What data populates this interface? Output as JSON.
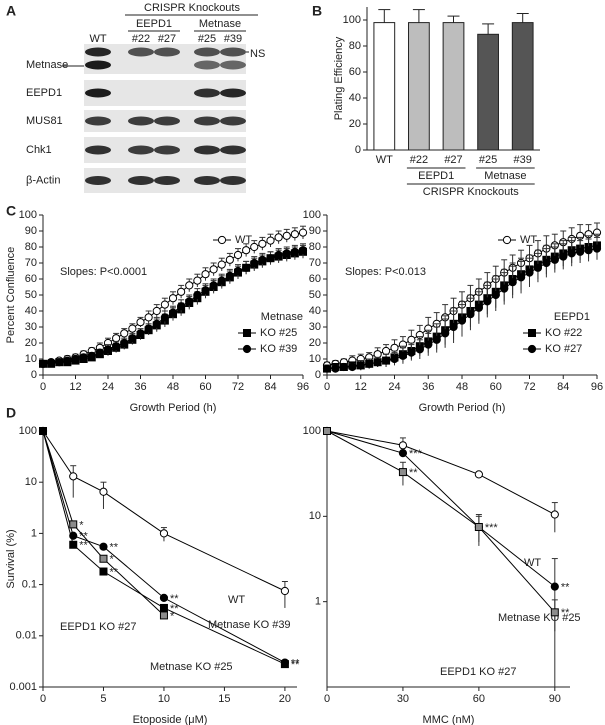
{
  "panels": [
    "A",
    "B",
    "C",
    "D"
  ],
  "blot": {
    "column_header": "CRISPR Knockouts",
    "groups": [
      "EEPD1",
      "Metnase"
    ],
    "lanes": [
      "WT",
      "#22",
      "#27",
      "#25",
      "#39"
    ],
    "rows": [
      "Metnase",
      "EEPD1",
      "MUS81",
      "Chk1",
      "β-Actin"
    ],
    "ns_label": "NS"
  },
  "chart_data": [
    {
      "type": "bar",
      "y_label": "Plating Efficiency",
      "categories": [
        "WT",
        "#22",
        "#27",
        "#25",
        "#39"
      ],
      "values": [
        98,
        98,
        98,
        89,
        98
      ],
      "errors": [
        10,
        10,
        5,
        8,
        7
      ],
      "colors": [
        "#ffffff",
        "#bdbdbd",
        "#bdbdbd",
        "#555555",
        "#555555"
      ],
      "ylim": [
        0,
        110
      ],
      "yticks": [
        0,
        20,
        40,
        60,
        80,
        100
      ],
      "groups": [
        {
          "label": "EEPD1",
          "members": [
            "#22",
            "#27"
          ]
        },
        {
          "label": "Metnase",
          "members": [
            "#25",
            "#39"
          ]
        }
      ],
      "group_title": "CRISPR Knockouts"
    },
    {
      "type": "line",
      "y_label": "Percent Confluence",
      "x_label": "Growth Period (h)",
      "annotation": "Slopes: P<0.0001",
      "legend_title": "Metnase",
      "x": [
        0,
        3,
        6,
        9,
        12,
        15,
        18,
        21,
        24,
        27,
        30,
        33,
        36,
        39,
        42,
        45,
        48,
        51,
        54,
        57,
        60,
        63,
        66,
        69,
        72,
        75,
        78,
        81,
        84,
        87,
        90,
        93,
        96
      ],
      "xlim": [
        0,
        96
      ],
      "xticks": [
        0,
        12,
        24,
        36,
        48,
        60,
        72,
        84,
        96
      ],
      "ylim": [
        0,
        100
      ],
      "yticks": [
        0,
        10,
        20,
        30,
        40,
        50,
        60,
        70,
        80,
        90,
        100
      ],
      "series": [
        {
          "name": "WT",
          "marker": "circle-open",
          "color": "#ffffff",
          "values": [
            7,
            8,
            9,
            10,
            11,
            13,
            15,
            17,
            20,
            23,
            26,
            29,
            33,
            36,
            40,
            44,
            48,
            52,
            56,
            59,
            63,
            66,
            69,
            72,
            75,
            78,
            80,
            82,
            84,
            86,
            87,
            88,
            89
          ],
          "errors": [
            1,
            1,
            1,
            2,
            2,
            2,
            2,
            3,
            3,
            3,
            3,
            3,
            3,
            4,
            4,
            4,
            4,
            4,
            4,
            4,
            4,
            4,
            4,
            4,
            4,
            4,
            4,
            4,
            4,
            4,
            4,
            4,
            4
          ]
        },
        {
          "name": "KO #25",
          "marker": "square",
          "color": "#000000",
          "values": [
            7,
            7,
            8,
            8,
            9,
            10,
            11,
            13,
            15,
            17,
            19,
            22,
            25,
            28,
            31,
            34,
            38,
            41,
            45,
            48,
            52,
            55,
            58,
            61,
            64,
            67,
            69,
            71,
            73,
            74,
            75,
            76,
            77
          ],
          "errors": [
            1,
            1,
            1,
            1,
            2,
            2,
            2,
            2,
            3,
            3,
            3,
            3,
            3,
            3,
            4,
            4,
            4,
            4,
            4,
            4,
            4,
            4,
            4,
            4,
            4,
            4,
            4,
            4,
            4,
            4,
            4,
            4,
            4
          ]
        },
        {
          "name": "KO #39",
          "marker": "circle",
          "color": "#000000",
          "values": [
            7,
            8,
            8,
            9,
            10,
            11,
            12,
            14,
            16,
            18,
            20,
            23,
            26,
            29,
            32,
            36,
            39,
            43,
            46,
            50,
            53,
            56,
            59,
            62,
            65,
            67,
            70,
            72,
            73,
            75,
            76,
            77,
            78
          ],
          "errors": [
            1,
            1,
            1,
            1,
            2,
            2,
            2,
            2,
            3,
            3,
            3,
            3,
            3,
            3,
            4,
            4,
            4,
            4,
            4,
            4,
            4,
            4,
            4,
            4,
            4,
            4,
            4,
            4,
            4,
            4,
            4,
            4,
            4
          ]
        }
      ]
    },
    {
      "type": "line",
      "x_label": "Growth Period (h)",
      "annotation": "Slopes: P<0.013",
      "legend_title": "EEPD1",
      "x": [
        0,
        3,
        6,
        9,
        12,
        15,
        18,
        21,
        24,
        27,
        30,
        33,
        36,
        39,
        42,
        45,
        48,
        51,
        54,
        57,
        60,
        63,
        66,
        69,
        72,
        75,
        78,
        81,
        84,
        87,
        90,
        93,
        96
      ],
      "xlim": [
        0,
        96
      ],
      "xticks": [
        0,
        12,
        24,
        36,
        48,
        60,
        72,
        84,
        96
      ],
      "ylim": [
        0,
        100
      ],
      "yticks": [
        0,
        10,
        20,
        30,
        40,
        50,
        60,
        70,
        80,
        90,
        100
      ],
      "series": [
        {
          "name": "WT",
          "marker": "circle-open",
          "color": "#ffffff",
          "values": [
            6,
            7,
            8,
            9,
            10,
            11,
            13,
            15,
            17,
            19,
            22,
            25,
            29,
            32,
            36,
            40,
            44,
            48,
            52,
            56,
            60,
            64,
            67,
            70,
            73,
            76,
            79,
            81,
            83,
            85,
            87,
            88,
            89
          ],
          "errors": [
            2,
            2,
            2,
            3,
            3,
            3,
            4,
            4,
            5,
            5,
            6,
            6,
            7,
            7,
            8,
            8,
            8,
            8,
            8,
            8,
            8,
            8,
            8,
            8,
            8,
            8,
            8,
            7,
            7,
            7,
            7,
            6,
            6
          ]
        },
        {
          "name": "KO #22",
          "marker": "square",
          "color": "#000000",
          "values": [
            4,
            5,
            5,
            6,
            6,
            7,
            8,
            9,
            11,
            13,
            15,
            18,
            21,
            24,
            28,
            32,
            36,
            40,
            44,
            48,
            52,
            56,
            60,
            63,
            66,
            69,
            72,
            74,
            76,
            78,
            79,
            80,
            81
          ],
          "errors": [
            2,
            2,
            2,
            2,
            3,
            3,
            3,
            4,
            4,
            5,
            5,
            6,
            7,
            8,
            9,
            10,
            10,
            10,
            10,
            10,
            10,
            10,
            10,
            10,
            9,
            9,
            9,
            8,
            8,
            8,
            7,
            7,
            7
          ]
        },
        {
          "name": "KO #27",
          "marker": "circle",
          "color": "#000000",
          "values": [
            4,
            4,
            5,
            5,
            6,
            7,
            8,
            9,
            10,
            12,
            14,
            16,
            19,
            22,
            26,
            30,
            34,
            38,
            42,
            46,
            50,
            54,
            58,
            61,
            64,
            67,
            70,
            72,
            74,
            76,
            77,
            78,
            79
          ],
          "errors": [
            2,
            2,
            2,
            2,
            3,
            3,
            3,
            4,
            4,
            5,
            5,
            6,
            7,
            8,
            9,
            10,
            10,
            10,
            10,
            10,
            10,
            10,
            10,
            10,
            9,
            9,
            9,
            8,
            8,
            8,
            7,
            7,
            7
          ]
        }
      ]
    },
    {
      "type": "line",
      "log_y": true,
      "y_label": "Survival (%)",
      "x_label": "Etoposide (μM)",
      "x": [
        0,
        2.5,
        5,
        10,
        20
      ],
      "xlim": [
        0,
        21
      ],
      "xticks": [
        0,
        5,
        10,
        15,
        20
      ],
      "ylim": [
        0.001,
        100
      ],
      "yticks": [
        0.001,
        0.01,
        0.1,
        1,
        10,
        100
      ],
      "series": [
        {
          "name": "WT",
          "marker": "circle-open",
          "color": "#ffffff",
          "values": [
            100,
            13,
            6.5,
            1,
            0.075
          ],
          "errors": [
            null,
            8,
            3.5,
            0.3,
            0.04
          ],
          "significance": [
            null,
            null,
            null,
            null,
            null
          ]
        },
        {
          "name": "Metnase KO #39",
          "marker": "circle",
          "color": "#000000",
          "values": [
            100,
            0.9,
            0.55,
            0.055,
            0.003
          ],
          "errors": [
            null,
            null,
            null,
            null,
            null
          ],
          "significance": [
            null,
            "**",
            "**",
            "**",
            "**"
          ]
        },
        {
          "name": "EEPD1 KO #27",
          "marker": "square",
          "color": "#8c8c8c",
          "values": [
            100,
            1.5,
            0.32,
            0.025,
            null
          ],
          "errors": [
            null,
            null,
            null,
            null,
            null
          ],
          "significance": [
            null,
            "*",
            "*",
            "*",
            null
          ]
        },
        {
          "name": "Metnase KO #25",
          "marker": "square",
          "color": "#000000",
          "values": [
            100,
            0.6,
            0.18,
            0.035,
            0.0028
          ],
          "errors": [
            null,
            null,
            null,
            null,
            null
          ],
          "significance": [
            null,
            "**",
            "**",
            "**",
            "**"
          ]
        }
      ]
    },
    {
      "type": "line",
      "log_y": true,
      "x_label": "MMC (nM)",
      "x": [
        0,
        30,
        60,
        90
      ],
      "xlim": [
        0,
        96
      ],
      "xticks": [
        0,
        30,
        60,
        90
      ],
      "ylim": [
        0.1,
        100
      ],
      "yticks": [
        1,
        10,
        100
      ],
      "series": [
        {
          "name": "WT",
          "marker": "circle-open",
          "color": "#ffffff",
          "values": [
            100,
            68,
            31,
            10.5
          ],
          "errors": [
            null,
            15,
            null,
            4
          ],
          "significance": [
            null,
            null,
            null,
            null
          ]
        },
        {
          "name": "Metnase KO #25",
          "marker": "circle",
          "color": "#000000",
          "values": [
            100,
            55,
            7.5,
            1.5
          ],
          "errors": [
            null,
            null,
            3,
            1.7
          ],
          "significance": [
            null,
            "***",
            "***",
            "**"
          ]
        },
        {
          "name": "EEPD1 KO #27",
          "marker": "square",
          "color": "#8c8c8c",
          "values": [
            100,
            33,
            7.5,
            0.75
          ],
          "errors": [
            null,
            10,
            2.5,
            0.3
          ],
          "significance": [
            null,
            "**",
            null,
            "**"
          ]
        }
      ]
    }
  ]
}
